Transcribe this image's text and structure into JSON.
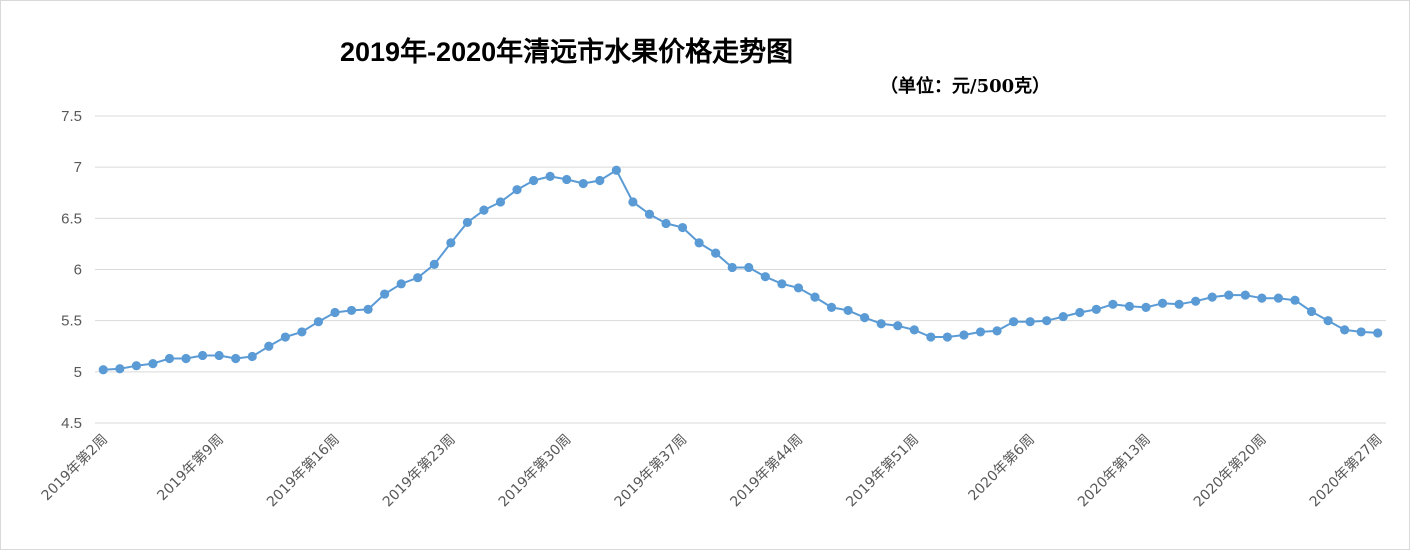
{
  "chart_data": {
    "type": "line",
    "title": "2019年-2020年清远市水果价格走势图",
    "subtitle": "（单位：元/500克）",
    "ylim": [
      4.5,
      7.5
    ],
    "yticks": [
      "4.5",
      "5",
      "5.5",
      "6",
      "6.5",
      "7",
      "7.5"
    ],
    "grid": true,
    "legend": "none",
    "color": "#5b9bd5",
    "x_tick_labels": [
      "2019年第2周",
      "2019年第9周",
      "2019年第16周",
      "2019年第23周",
      "2019年第30周",
      "2019年第37周",
      "2019年第44周",
      "2019年第51周",
      "2020年第6周",
      "2020年第13周",
      "2020年第20周",
      "2020年第27周"
    ],
    "x_tick_every": 7,
    "values": [
      5.02,
      5.03,
      5.06,
      5.08,
      5.13,
      5.13,
      5.16,
      5.16,
      5.13,
      5.15,
      5.25,
      5.34,
      5.39,
      5.49,
      5.58,
      5.6,
      5.61,
      5.76,
      5.86,
      5.92,
      6.05,
      6.26,
      6.46,
      6.58,
      6.66,
      6.78,
      6.87,
      6.91,
      6.88,
      6.84,
      6.87,
      6.97,
      6.66,
      6.54,
      6.45,
      6.41,
      6.26,
      6.16,
      6.02,
      6.02,
      5.93,
      5.86,
      5.82,
      5.73,
      5.63,
      5.6,
      5.53,
      5.47,
      5.45,
      5.41,
      5.34,
      5.34,
      5.36,
      5.39,
      5.4,
      5.49,
      5.49,
      5.5,
      5.54,
      5.58,
      5.61,
      5.66,
      5.64,
      5.63,
      5.67,
      5.66,
      5.69,
      5.73,
      5.75,
      5.75,
      5.72,
      5.72,
      5.7,
      5.59,
      5.5,
      5.41,
      5.39,
      5.38
    ]
  }
}
